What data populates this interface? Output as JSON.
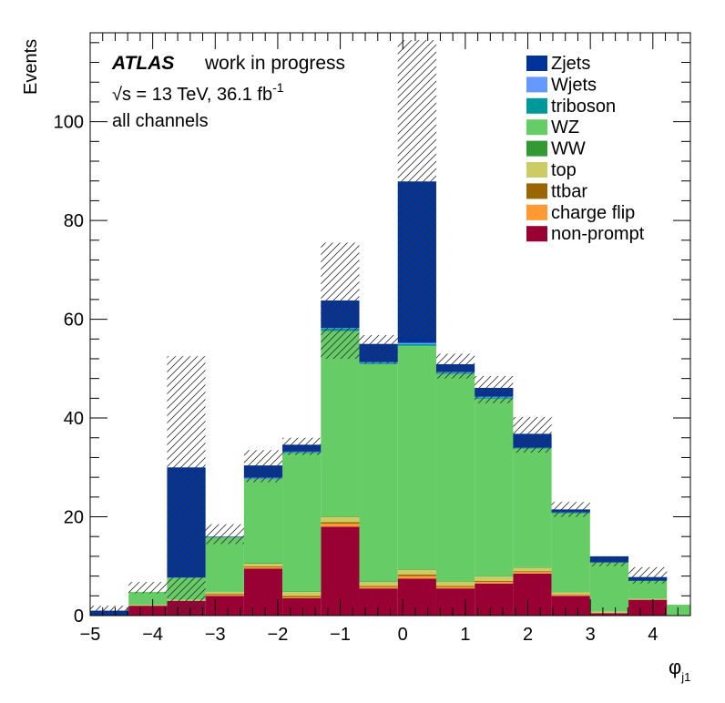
{
  "chart_data": {
    "type": "bar",
    "subtype": "stacked-histogram",
    "bin_edges": [
      -5.0,
      -4.385,
      -3.77,
      -3.155,
      -2.54,
      -1.925,
      -1.31,
      -0.695,
      -0.08,
      0.535,
      1.15,
      1.765,
      2.38,
      2.995,
      3.61,
      4.225,
      4.84
    ],
    "xlim": [
      -5.0,
      4.6
    ],
    "ylim": [
      0,
      118
    ],
    "xlabel": "φ",
    "xlabel_sub": "j1",
    "ylabel": "Events",
    "x_ticks": [
      "−5",
      "−4",
      "−3",
      "−2",
      "−1",
      "0",
      "1",
      "2",
      "3",
      "4"
    ],
    "x_tick_values": [
      -5,
      -4,
      -3,
      -2,
      -1,
      0,
      1,
      2,
      3,
      4
    ],
    "y_ticks": [
      "0",
      "20",
      "40",
      "60",
      "80",
      "100"
    ],
    "y_tick_values": [
      0,
      20,
      40,
      60,
      80,
      100
    ],
    "annotations": {
      "atlas": "ATLAS",
      "status": "work in progress",
      "sqrt_s": "√s = 13 TeV, 36.1 fb",
      "lumi_exp": "-1",
      "channel": "all channels"
    },
    "legend_position": "top-right",
    "series": [
      {
        "name": "non-prompt",
        "color": "#990033",
        "values": [
          0.0,
          2.0,
          3.0,
          4.0,
          9.5,
          3.5,
          18.0,
          5.5,
          7.5,
          5.5,
          6.5,
          8.5,
          4.0,
          0.5,
          3.2,
          0.0
        ]
      },
      {
        "name": "charge flip",
        "color": "#ff9933",
        "values": [
          0.0,
          0.0,
          0.0,
          0.2,
          0.3,
          0.2,
          0.6,
          0.3,
          0.5,
          0.3,
          0.3,
          0.3,
          0.2,
          0.0,
          0.0,
          0.0
        ]
      },
      {
        "name": "ttbar",
        "color": "#996600",
        "values": [
          0.0,
          0.0,
          0.0,
          0.2,
          0.2,
          0.3,
          0.3,
          0.2,
          0.3,
          0.2,
          0.2,
          0.2,
          0.1,
          0.0,
          0.0,
          0.0
        ]
      },
      {
        "name": "top",
        "color": "#cccc66",
        "values": [
          0.0,
          0.2,
          0.2,
          0.4,
          0.5,
          0.8,
          1.1,
          0.8,
          1.0,
          0.9,
          0.9,
          0.7,
          0.4,
          0.3,
          0.2,
          0.0
        ]
      },
      {
        "name": "WW",
        "color": "#339933",
        "values": [
          0.0,
          0.0,
          0.0,
          0.0,
          0.1,
          0.1,
          0.1,
          0.1,
          0.1,
          0.1,
          0.1,
          0.1,
          0.0,
          0.0,
          0.0,
          0.0
        ]
      },
      {
        "name": "WZ",
        "color": "#66cc66",
        "values": [
          0.0,
          2.6,
          4.4,
          11.0,
          17.0,
          28.0,
          37.5,
          44.0,
          45.2,
          41.9,
          35.9,
          24.0,
          16.0,
          9.9,
          3.6,
          2.2
        ]
      },
      {
        "name": "triboson",
        "color": "#009999",
        "values": [
          0.0,
          0.0,
          0.1,
          0.1,
          0.2,
          0.2,
          0.5,
          0.3,
          0.4,
          0.3,
          0.3,
          0.2,
          0.2,
          0.1,
          0.1,
          0.0
        ]
      },
      {
        "name": "Wjets",
        "color": "#6699ff",
        "values": [
          0.0,
          0.0,
          0.0,
          0.0,
          0.1,
          0.1,
          0.1,
          0.1,
          0.2,
          0.1,
          0.1,
          0.0,
          0.0,
          0.0,
          0.0,
          0.0
        ]
      },
      {
        "name": "Zjets",
        "color": "#003399",
        "values": [
          1.0,
          0.0,
          22.3,
          0.1,
          2.5,
          1.4,
          5.6,
          3.7,
          32.7,
          1.6,
          1.8,
          2.8,
          0.6,
          1.2,
          0.7,
          0.0
        ]
      }
    ],
    "uncertainty": {
      "label": "stat. uncertainty (hatched)",
      "low": [
        0.0,
        4.5,
        0.0,
        14.5,
        27.0,
        32.5,
        52.0,
        51.0,
        56.0,
        48.0,
        43.0,
        33.0,
        20.0,
        10.0,
        6.5,
        2.2
      ],
      "high": [
        2.0,
        6.8,
        52.5,
        18.5,
        33.5,
        36.0,
        75.5,
        56.8,
        116.5,
        53.0,
        48.5,
        40.2,
        23.0,
        12.0,
        9.8,
        2.2
      ]
    }
  }
}
